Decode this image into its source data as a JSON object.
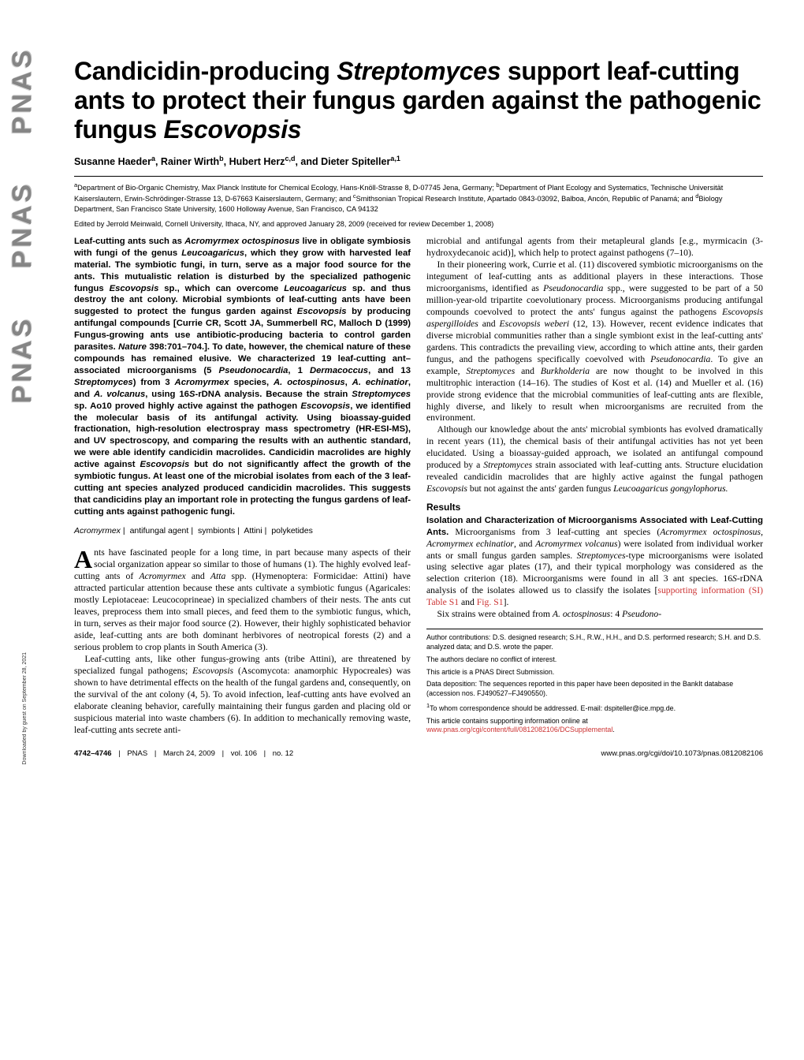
{
  "sidebar": {
    "logo": "PNAS"
  },
  "header": {
    "title_html": "Candicidin-producing <em>Streptomyces</em> support leaf-cutting ants to protect their fungus garden against the pathogenic fungus <em>Escovopsis</em>",
    "authors_html": "Susanne Haeder<sup>a</sup>, Rainer Wirth<sup>b</sup>, Hubert Herz<sup>c,d</sup>, and Dieter Spiteller<sup>a,1</sup>",
    "affil_html": "<sup>a</sup>Department of Bio-Organic Chemistry, Max Planck Institute for Chemical Ecology, Hans-Knöll-Strasse 8, D-07745 Jena, Germany; <sup>b</sup>Department of Plant Ecology and Systematics, Technische Universität Kaiserslautern, Erwin-Schrödinger-Strasse 13, D-67663 Kaiserslautern, Germany; and <sup>c</sup>Smithsonian Tropical Research Institute, Apartado 0843-03092, Balboa, Ancón, Republic of Panamá; and <sup>d</sup>Biology Department, San Francisco State University, 1600 Holloway Avenue, San Francisco, CA 94132",
    "edited": "Edited by Jerrold Meinwald, Cornell University, Ithaca, NY, and approved January 28, 2009 (received for review December 1, 2008)"
  },
  "abstract_html": "Leaf-cutting ants such as <em>Acromyrmex octospinosus</em> live in obligate symbiosis with fungi of the genus <em>Leucoagaricus</em>, which they grow with harvested leaf material. The symbiotic fungi, in turn, serve as a major food source for the ants. This mutualistic relation is disturbed by the specialized pathogenic fungus <em>Escovopsis</em> sp., which can overcome <em>Leucoagaricus</em> sp. and thus destroy the ant colony. Microbial symbionts of leaf-cutting ants have been suggested to protect the fungus garden against <em>Escovopsis</em> by producing antifungal compounds [Currie CR, Scott JA, Summerbell RC, Malloch D (1999) Fungus-growing ants use antibiotic-producing bacteria to control garden parasites. <em>Nature</em> 398:701–704.]. To date, however, the chemical nature of these compounds has remained elusive. We characterized 19 leaf-cutting ant–associated microorganisms (5 <em>Pseudonocardia</em>, 1 <em>Dermacoccus</em>, and 13 <em>Streptomyces</em>) from 3 <em>Acromyrmex</em> species, <em>A. octospinosus</em>, <em>A. echinatior</em>, and <em>A. volcanus</em>, using 16<em>S</em>-rDNA analysis. Because the strain <em>Streptomyces</em> sp. Ao10 proved highly active against the pathogen <em>Escovopsis</em>, we identified the molecular basis of its antifungal activity. Using bioassay-guided fractionation, high-resolution electrospray mass spectrometry (HR-ESI-MS), and UV spectroscopy, and comparing the results with an authentic standard, we were able identify candicidin macrolides. Candicidin macrolides are highly active against <em>Escovopsis</em> but do not significantly affect the growth of the symbiotic fungus. At least one of the microbial isolates from each of the 3 leaf-cutting ant species analyzed produced candicidin macrolides. This suggests that candicidins play an important role in protecting the fungus gardens of leaf-cutting ants against pathogenic fungi.",
  "keywords": {
    "k1": "Acromyrmex",
    "k2": "antifungal agent",
    "k3": "symbionts",
    "k4": "Attini",
    "k5": "polyketides"
  },
  "body": {
    "p1_html": "<span class='dropcap'>A</span>nts have fascinated people for a long time, in part because many aspects of their social organization appear so similar to those of humans (1). The highly evolved leaf-cutting ants of <em>Acromyrmex</em> and <em>Atta</em> spp. (Hymenoptera: Formicidae: Attini) have attracted particular attention because these ants cultivate a symbiotic fungus (Agaricales: mostly Lepiotaceae: Leucocoprineae) in specialized chambers of their nests. The ants cut leaves, preprocess them into small pieces, and feed them to the symbiotic fungus, which, in turn, serves as their major food source (2). However, their highly sophisticated behavior aside, leaf-cutting ants are both dominant herbivores of neotropical forests (2) and a serious problem to crop plants in South America (3).",
    "p2_html": "Leaf-cutting ants, like other fungus-growing ants (tribe Attini), are threatened by specialized fungal pathogens; <em>Escovopsis</em> (Ascomycota: anamorphic Hypocreales) was shown to have detrimental effects on the health of the fungal gardens and, consequently, on the survival of the ant colony (4, 5). To avoid infection, leaf-cutting ants have evolved an elaborate cleaning behavior, carefully maintaining their fungus garden and placing old or suspicious material into waste chambers (6). In addition to mechanically removing waste, leaf-cutting ants secrete anti-",
    "p3_html": "microbial and antifungal agents from their metapleural glands [e.g., myrmicacin (3-hydroxydecanoic acid)], which help to protect against pathogens (7–10).",
    "p4_html": "In their pioneering work, Currie et al. (11) discovered symbiotic microorganisms on the integument of leaf-cutting ants as additional players in these interactions. Those microorganisms, identified as <em>Pseudonocardia</em> spp., were suggested to be part of a 50 million-year-old tripartite coevolutionary process. Microorganisms producing antifungal compounds coevolved to protect the ants' fungus against the pathogens <em>Escovopsis aspergilloides</em> and <em>Escovopsis weberi</em> (12, 13). However, recent evidence indicates that diverse microbial communities rather than a single symbiont exist in the leaf-cutting ants' gardens. This contradicts the prevailing view, according to which attine ants, their garden fungus, and the pathogens specifically coevolved with <em>Pseudonocardia</em>. To give an example, <em>Streptomyces</em> and <em>Burkholderia</em> are now thought to be involved in this multitrophic interaction (14–16). The studies of Kost et al. (14) and Mueller et al. (16) provide strong evidence that the microbial communities of leaf-cutting ants are flexible, highly diverse, and likely to result when microorganisms are recruited from the environment.",
    "p5_html": "Although our knowledge about the ants' microbial symbionts has evolved dramatically in recent years (11), the chemical basis of their antifungal activities has not yet been elucidated. Using a bioassay-guided approach, we isolated an antifungal compound produced by a <em>Streptomyces</em> strain associated with leaf-cutting ants. Structure elucidation revealed candicidin macrolides that are highly active against the fungal pathogen <em>Escovopsis</em> but not against the ants' garden fungus <em>Leucoagaricus gongylophorus.</em>"
  },
  "results": {
    "head": "Results",
    "sub1_label": "Isolation and Characterization of Microorganisms Associated with Leaf-Cutting Ants.",
    "sub1_text_html": " Microorganisms from 3 leaf-cutting ant species (<em>Acromyrmex octospinosus</em>, <em>Acromyrmex echinatior</em>, and <em>Acromyrmex volcanus</em>) were isolated from individual worker ants or small fungus garden samples. <em>Streptomyces</em>-type microorganisms were isolated using selective agar plates (17), and their typical morphology was considered as the selection criterion (18). Microorganisms were found in all 3 ant species. 16<em>S</em>-rDNA analysis of the isolates allowed us to classify the isolates [<a class='link'>supporting information (SI) Table S1</a> and <a class='link'>Fig. S1</a>].",
    "p2_html": "Six strains were obtained from <em>A. octospinosus</em>: 4 <em>Pseudono-</em>"
  },
  "footnotes": {
    "f1": "Author contributions: D.S. designed research; S.H., R.W., H.H., and D.S. performed research; S.H. and D.S. analyzed data; and D.S. wrote the paper.",
    "f2": "The authors declare no conflict of interest.",
    "f3": "This article is a PNAS Direct Submission.",
    "f4": "Data deposition: The sequences reported in this paper have been deposited in the BankIt database (accession nos. FJ490527–FJ490550).",
    "f5_html": "<sup>1</sup>To whom correspondence should be addressed. E-mail: dspiteller@ice.mpg.de.",
    "f6_html": "This article contains supporting information online at <a class='link'>www.pnas.org/cgi/content/full/0812082106/DCSupplemental</a>."
  },
  "footer": {
    "page_range": "4742–4746",
    "journal": "PNAS",
    "date": "March 24, 2009",
    "vol": "vol. 106",
    "no": "no. 12",
    "doi": "www.pnas.org/cgi/doi/10.1073/pnas.0812082106"
  },
  "download_note": "Downloaded by guest on September 28, 2021"
}
